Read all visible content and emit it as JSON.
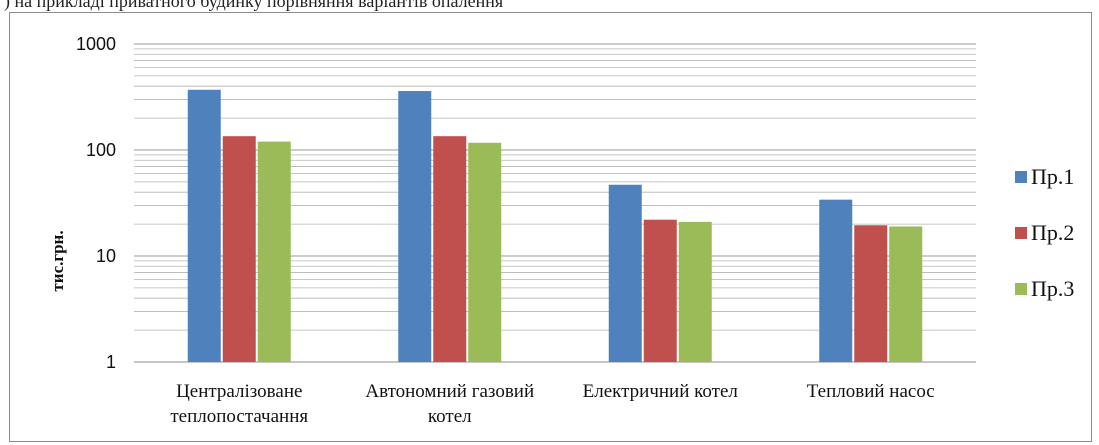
{
  "caption_fragment": ") на прикладі приватного будинку порівняння варіантів опалення",
  "chart_data": {
    "type": "bar",
    "yscale": "log",
    "ylim": [
      1,
      1000
    ],
    "yticks": [
      1,
      10,
      100,
      1000
    ],
    "ytick_labels": [
      "1",
      "10",
      "100",
      "1000"
    ],
    "ylabel": "тис.грн.",
    "xlabel": "",
    "grid": true,
    "legend_position": "right",
    "categories": [
      [
        "Централізоване",
        "теплопостачання"
      ],
      [
        "Автономний газовий",
        "котел"
      ],
      [
        "Електричний котел"
      ],
      [
        "Тепловий насос"
      ]
    ],
    "series": [
      {
        "name": "Пр.1",
        "color": "#4f81bd",
        "values": [
          370,
          360,
          47,
          34
        ]
      },
      {
        "name": "Пр.2",
        "color": "#c0504d",
        "values": [
          135,
          135,
          22,
          19.5
        ]
      },
      {
        "name": "Пр.3",
        "color": "#9bbb59",
        "values": [
          120,
          117,
          21,
          19
        ]
      }
    ]
  }
}
